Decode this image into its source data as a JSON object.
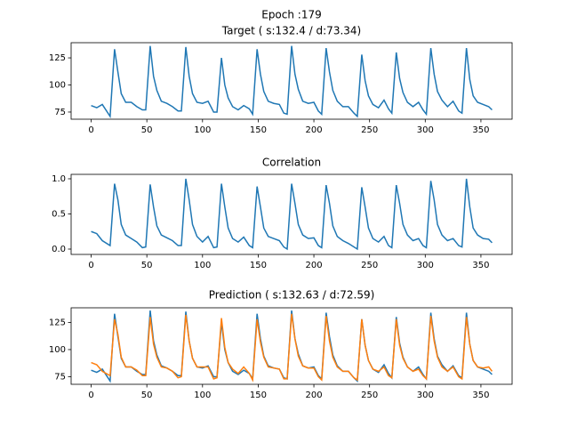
{
  "chart_data": [
    {
      "type": "line",
      "title": "Epoch :179",
      "subtitle": "Target ( s:132.4 / d:73.34)",
      "x": [
        0,
        5,
        10,
        17,
        21,
        24,
        27,
        31,
        36,
        41,
        46,
        49,
        53,
        56,
        59,
        63,
        68,
        73,
        78,
        81,
        85,
        88,
        91,
        95,
        100,
        105,
        110,
        113,
        117,
        120,
        123,
        127,
        132,
        137,
        142,
        145,
        149,
        152,
        155,
        159,
        164,
        169,
        173,
        176,
        180,
        183,
        186,
        190,
        195,
        200,
        204,
        207,
        211,
        214,
        217,
        221,
        226,
        231,
        236,
        239,
        243,
        246,
        249,
        253,
        258,
        263,
        267,
        270,
        274,
        277,
        280,
        284,
        289,
        294,
        298,
        301,
        305,
        308,
        311,
        315,
        320,
        325,
        330,
        333,
        337,
        340,
        343,
        347,
        352,
        357,
        360
      ],
      "series": [
        {
          "color": "#1f77b4",
          "values": [
            81,
            79,
            82,
            71,
            133,
            112,
            92,
            84,
            84,
            80,
            77,
            77,
            136,
            108,
            95,
            85,
            83,
            80,
            76,
            76,
            135,
            108,
            92,
            84,
            83,
            85,
            75,
            75,
            125,
            100,
            88,
            80,
            77,
            81,
            78,
            73,
            133,
            110,
            94,
            85,
            83,
            82,
            74,
            73,
            136,
            110,
            96,
            85,
            83,
            84,
            76,
            73,
            134,
            112,
            95,
            85,
            80,
            80,
            74,
            71,
            128,
            104,
            90,
            82,
            79,
            86,
            78,
            74,
            130,
            106,
            93,
            84,
            80,
            84,
            77,
            73,
            134,
            110,
            94,
            86,
            80,
            85,
            76,
            74,
            134,
            105,
            90,
            84,
            82,
            80,
            77
          ]
        }
      ],
      "xlim": [
        -18,
        378
      ],
      "xticks": [
        0,
        50,
        100,
        150,
        200,
        250,
        300,
        350
      ],
      "ylim": [
        68.4,
        139
      ],
      "yticks": [
        75,
        100,
        125
      ]
    },
    {
      "type": "line",
      "title": "Correlation",
      "x": [
        0,
        5,
        10,
        17,
        21,
        24,
        27,
        31,
        36,
        41,
        46,
        49,
        53,
        56,
        59,
        63,
        68,
        73,
        78,
        81,
        85,
        88,
        91,
        95,
        100,
        105,
        110,
        113,
        117,
        120,
        123,
        127,
        132,
        137,
        142,
        145,
        149,
        152,
        155,
        159,
        164,
        169,
        173,
        176,
        180,
        183,
        186,
        190,
        195,
        200,
        204,
        207,
        211,
        214,
        217,
        221,
        226,
        231,
        236,
        239,
        243,
        246,
        249,
        253,
        258,
        263,
        267,
        270,
        274,
        277,
        280,
        284,
        289,
        294,
        298,
        301,
        305,
        308,
        311,
        315,
        320,
        325,
        330,
        333,
        337,
        340,
        343,
        347,
        352,
        357,
        360
      ],
      "series": [
        {
          "color": "#1f77b4",
          "values": [
            0.25,
            0.22,
            0.12,
            0.05,
            0.93,
            0.7,
            0.35,
            0.2,
            0.15,
            0.1,
            0.02,
            0.03,
            0.92,
            0.6,
            0.33,
            0.2,
            0.16,
            0.12,
            0.05,
            0.05,
            1.0,
            0.7,
            0.35,
            0.18,
            0.1,
            0.18,
            0.02,
            0.03,
            0.93,
            0.6,
            0.3,
            0.15,
            0.1,
            0.17,
            0.05,
            0.02,
            0.89,
            0.6,
            0.3,
            0.18,
            0.15,
            0.12,
            0.03,
            0.0,
            0.93,
            0.65,
            0.35,
            0.2,
            0.15,
            0.16,
            0.05,
            0.02,
            0.91,
            0.65,
            0.33,
            0.18,
            0.12,
            0.08,
            0.03,
            0.0,
            0.88,
            0.6,
            0.3,
            0.15,
            0.1,
            0.18,
            0.05,
            0.02,
            0.91,
            0.65,
            0.35,
            0.2,
            0.12,
            0.15,
            0.05,
            0.02,
            0.97,
            0.7,
            0.35,
            0.2,
            0.12,
            0.15,
            0.05,
            0.03,
            1.0,
            0.6,
            0.3,
            0.2,
            0.15,
            0.14,
            0.09
          ]
        }
      ],
      "xlim": [
        -18,
        378
      ],
      "xticks": [
        0,
        50,
        100,
        150,
        200,
        250,
        300,
        350
      ],
      "ylim": [
        -0.076,
        1.063
      ],
      "yticks": [
        {
          "value": 0,
          "label": "0.0"
        },
        {
          "value": 0.5,
          "label": "0.5"
        },
        {
          "value": 1,
          "label": "1.0"
        }
      ]
    },
    {
      "type": "line",
      "title": "Prediction ( s:132.63 / d:72.59)",
      "x": [
        0,
        5,
        10,
        17,
        21,
        24,
        27,
        31,
        36,
        41,
        46,
        49,
        53,
        56,
        59,
        63,
        68,
        73,
        78,
        81,
        85,
        88,
        91,
        95,
        100,
        105,
        110,
        113,
        117,
        120,
        123,
        127,
        132,
        137,
        142,
        145,
        149,
        152,
        155,
        159,
        164,
        169,
        173,
        176,
        180,
        183,
        186,
        190,
        195,
        200,
        204,
        207,
        211,
        214,
        217,
        221,
        226,
        231,
        236,
        239,
        243,
        246,
        249,
        253,
        258,
        263,
        267,
        270,
        274,
        277,
        280,
        284,
        289,
        294,
        298,
        301,
        305,
        308,
        311,
        315,
        320,
        325,
        330,
        333,
        337,
        340,
        343,
        347,
        352,
        357,
        360
      ],
      "series": [
        {
          "color": "#1f77b4",
          "values": [
            81,
            79,
            82,
            71,
            133,
            112,
            92,
            84,
            84,
            80,
            77,
            77,
            136,
            108,
            95,
            85,
            83,
            80,
            76,
            76,
            135,
            108,
            92,
            84,
            83,
            85,
            75,
            75,
            125,
            100,
            88,
            80,
            77,
            81,
            78,
            73,
            133,
            110,
            94,
            85,
            83,
            82,
            74,
            73,
            136,
            110,
            96,
            85,
            83,
            84,
            76,
            73,
            134,
            112,
            95,
            85,
            80,
            80,
            74,
            71,
            128,
            104,
            90,
            82,
            79,
            86,
            78,
            74,
            130,
            106,
            93,
            84,
            80,
            84,
            77,
            73,
            134,
            110,
            94,
            86,
            80,
            85,
            76,
            74,
            134,
            105,
            90,
            84,
            82,
            80,
            77
          ]
        },
        {
          "color": "#ff7f0e",
          "values": [
            88,
            86,
            80,
            76,
            128,
            114,
            93,
            84,
            84,
            81,
            76,
            76,
            130,
            105,
            93,
            84,
            83,
            80,
            74,
            75,
            132,
            108,
            92,
            84,
            84,
            84,
            73,
            74,
            129,
            102,
            88,
            82,
            78,
            84,
            78,
            72,
            128,
            107,
            93,
            84,
            83,
            82,
            73,
            73,
            133,
            110,
            94,
            85,
            83,
            83,
            75,
            72,
            131,
            108,
            93,
            84,
            80,
            80,
            74,
            72,
            128,
            104,
            90,
            82,
            80,
            84,
            76,
            74,
            128,
            104,
            92,
            84,
            80,
            82,
            76,
            73,
            131,
            108,
            93,
            84,
            80,
            84,
            75,
            73,
            130,
            105,
            90,
            84,
            83,
            84,
            80
          ]
        }
      ],
      "xlim": [
        -18,
        378
      ],
      "xticks": [
        0,
        50,
        100,
        150,
        200,
        250,
        300,
        350
      ],
      "ylim": [
        68,
        138.5
      ],
      "yticks": [
        75,
        100,
        125
      ]
    }
  ]
}
